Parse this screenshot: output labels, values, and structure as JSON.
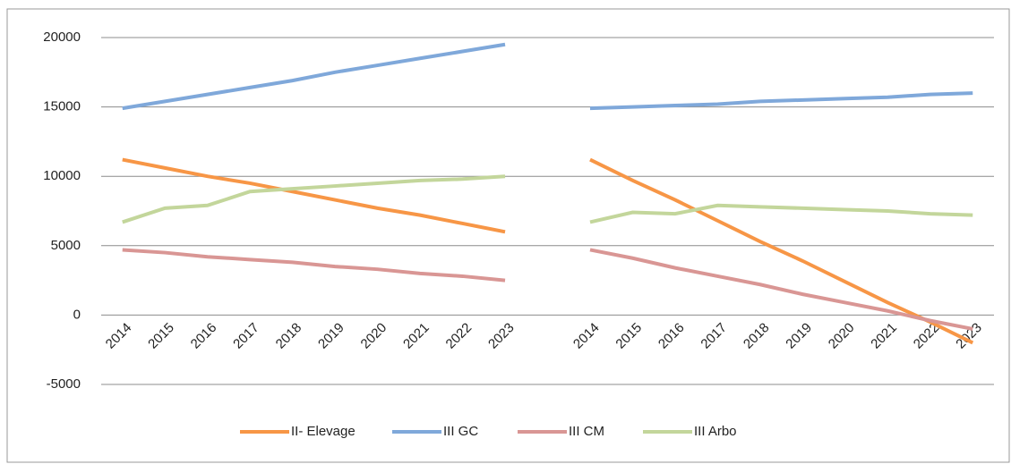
{
  "chart_data": {
    "type": "line",
    "categories": [
      "2014",
      "2015",
      "2016",
      "2017",
      "2018",
      "2019",
      "2020",
      "2021",
      "2022",
      "2023",
      null,
      "2014",
      "2015",
      "2016",
      "2017",
      "2018",
      "2019",
      "2020",
      "2021",
      "2022",
      "2023"
    ],
    "series": [
      {
        "name": "II- Elevage",
        "color": "#f79646",
        "values": [
          11200,
          10600,
          10000,
          9500,
          8900,
          8300,
          7700,
          7200,
          6600,
          6000,
          null,
          11200,
          9700,
          8300,
          6800,
          5300,
          3900,
          2400,
          900,
          -500,
          -2000
        ]
      },
      {
        "name": "III GC",
        "color": "#7fa8da",
        "values": [
          14900,
          15400,
          15900,
          16400,
          16900,
          17500,
          18000,
          18500,
          19000,
          19500,
          null,
          14900,
          15000,
          15100,
          15200,
          15400,
          15500,
          15600,
          15700,
          15900,
          16000
        ]
      },
      {
        "name": "III CM",
        "color": "#d99694",
        "values": [
          4700,
          4500,
          4200,
          4000,
          3800,
          3500,
          3300,
          3000,
          2800,
          2500,
          null,
          4700,
          4100,
          3400,
          2800,
          2200,
          1500,
          900,
          300,
          -400,
          -1000
        ]
      },
      {
        "name": "III Arbo",
        "color": "#c3d69b",
        "values": [
          6700,
          7700,
          7900,
          8900,
          9100,
          9300,
          9500,
          9700,
          9800,
          10000,
          null,
          6700,
          7400,
          7300,
          7900,
          7800,
          7700,
          7600,
          7500,
          7300,
          7200
        ]
      }
    ],
    "ylim": [
      -5000,
      20000
    ],
    "yticks": [
      -5000,
      0,
      5000,
      10000,
      15000,
      20000
    ],
    "grid": true
  }
}
